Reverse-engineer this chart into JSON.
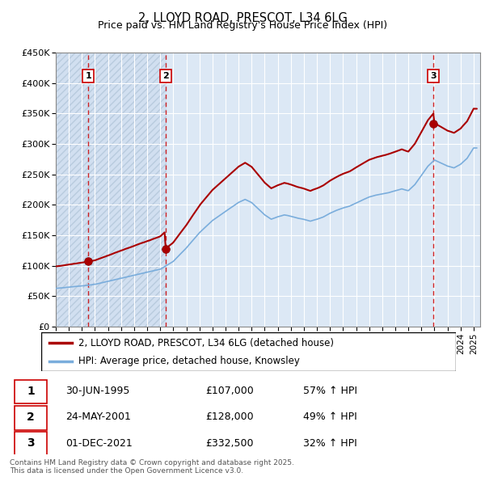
{
  "title": "2, LLOYD ROAD, PRESCOT, L34 6LG",
  "subtitle": "Price paid vs. HM Land Registry's House Price Index (HPI)",
  "ylim": [
    0,
    450000
  ],
  "yticks": [
    0,
    50000,
    100000,
    150000,
    200000,
    250000,
    300000,
    350000,
    400000,
    450000
  ],
  "ytick_labels": [
    "£0",
    "£50K",
    "£100K",
    "£150K",
    "£200K",
    "£250K",
    "£300K",
    "£350K",
    "£400K",
    "£450K"
  ],
  "xlim_start": 1993.0,
  "xlim_end": 2025.5,
  "sale_dates": [
    1995.5,
    2001.39,
    2021.92
  ],
  "sale_prices": [
    107000,
    128000,
    332500
  ],
  "sale_labels": [
    "1",
    "2",
    "3"
  ],
  "legend_line1": "2, LLOYD ROAD, PRESCOT, L34 6LG (detached house)",
  "legend_line2": "HPI: Average price, detached house, Knowsley",
  "table_entries": [
    [
      "1",
      "30-JUN-1995",
      "£107,000",
      "57% ↑ HPI"
    ],
    [
      "2",
      "24-MAY-2001",
      "£128,000",
      "49% ↑ HPI"
    ],
    [
      "3",
      "01-DEC-2021",
      "£332,500",
      "32% ↑ HPI"
    ]
  ],
  "footnote": "Contains HM Land Registry data © Crown copyright and database right 2025.\nThis data is licensed under the Open Government Licence v3.0.",
  "sale_line_color": "#cc0000",
  "hpi_line_color": "#7aaddc",
  "price_line_color": "#aa0000",
  "bg_light_blue": "#dce8f5",
  "grid_color": "#aaaaaa"
}
